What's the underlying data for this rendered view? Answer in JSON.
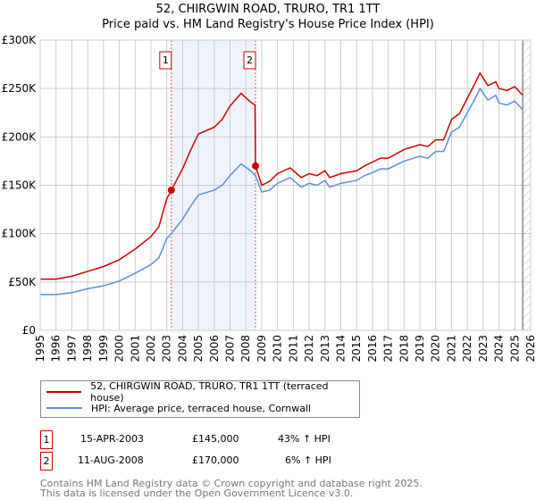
{
  "chart_data": {
    "type": "line",
    "title": "52, CHIRGWIN ROAD, TRURO, TR1 1TT",
    "subtitle": "Price paid vs. HM Land Registry's House Price Index (HPI)",
    "xlim": [
      1995,
      2026
    ],
    "ylim": [
      0,
      300000
    ],
    "y_ticks": [
      0,
      50000,
      100000,
      150000,
      200000,
      250000,
      300000
    ],
    "y_tick_labels": [
      "£0",
      "£50K",
      "£100K",
      "£150K",
      "£200K",
      "£250K",
      "£300K"
    ],
    "x_tick_labels": [
      "1995",
      "1996",
      "1997",
      "1998",
      "1999",
      "2000",
      "2001",
      "2002",
      "2003",
      "2004",
      "2005",
      "2006",
      "2007",
      "2008",
      "2009",
      "2010",
      "2011",
      "2012",
      "2013",
      "2014",
      "2015",
      "2016",
      "2017",
      "2018",
      "2019",
      "2020",
      "2021",
      "2022",
      "2023",
      "2024",
      "2025",
      "2026"
    ],
    "grid": true,
    "legend_position": "below",
    "shaded_region": [
      2003.29,
      2008.61
    ],
    "forecast_hatch_from": 2025.5,
    "colors": {
      "price": "#cc0000",
      "hpi": "#5b8fd4",
      "shade": "#eef3fd"
    },
    "series": [
      {
        "name": "52, CHIRGWIN ROAD, TRURO, TR1 1TT (terraced house)",
        "color": "#cc0000",
        "x": [
          1995,
          1996,
          1997,
          1998,
          1999,
          2000,
          2001,
          2002,
          2002.5,
          2003,
          2003.29,
          2004,
          2004.5,
          2005,
          2006,
          2006.5,
          2007,
          2007.7,
          2008.3,
          2008.58,
          2008.61,
          2009,
          2009.5,
          2010,
          2010.8,
          2011.5,
          2012,
          2012.5,
          2013,
          2013.3,
          2014,
          2015,
          2015.5,
          2016,
          2016.5,
          2017,
          2018,
          2019,
          2019.5,
          2020,
          2020.5,
          2021,
          2021.5,
          2022,
          2022.5,
          2022.8,
          2023.3,
          2023.8,
          2024,
          2024.5,
          2025,
          2025.5
        ],
        "y": [
          53000,
          53000,
          56000,
          61000,
          66000,
          73000,
          84000,
          97000,
          107000,
          136000,
          145000,
          167000,
          186000,
          203000,
          210000,
          218000,
          232000,
          245000,
          236000,
          233000,
          170000,
          150000,
          154000,
          162000,
          168000,
          158000,
          162000,
          160000,
          165000,
          158000,
          162000,
          165000,
          170000,
          174000,
          178000,
          178000,
          187000,
          192000,
          190000,
          197000,
          197000,
          218000,
          224000,
          240000,
          256000,
          266000,
          253000,
          257000,
          250000,
          248000,
          252000,
          243000
        ]
      },
      {
        "name": "HPI: Average price, terraced house, Cornwall",
        "color": "#5b8fd4",
        "x": [
          1995,
          1996,
          1997,
          1998,
          1999,
          2000,
          2001,
          2002,
          2002.5,
          2003,
          2003.29,
          2004,
          2004.5,
          2005,
          2006,
          2006.5,
          2007,
          2007.7,
          2008.3,
          2008.61,
          2009,
          2009.5,
          2010,
          2010.8,
          2011.5,
          2012,
          2012.5,
          2013,
          2013.3,
          2014,
          2015,
          2015.5,
          2016,
          2016.5,
          2017,
          2018,
          2019,
          2019.5,
          2020,
          2020.5,
          2021,
          2021.5,
          2022,
          2022.5,
          2022.8,
          2023.3,
          2023.8,
          2024,
          2024.5,
          2025,
          2025.5
        ],
        "y": [
          37000,
          37000,
          39000,
          43000,
          46000,
          51000,
          59000,
          68000,
          75000,
          95000,
          100000,
          115000,
          128000,
          140000,
          145000,
          150000,
          160000,
          172000,
          165000,
          160000,
          143000,
          145000,
          152000,
          158000,
          148000,
          152000,
          150000,
          155000,
          148000,
          152000,
          155000,
          160000,
          163000,
          167000,
          167000,
          175000,
          180000,
          178000,
          185000,
          185000,
          205000,
          210000,
          225000,
          240000,
          250000,
          238000,
          243000,
          235000,
          233000,
          237000,
          228000
        ]
      }
    ],
    "annotations": [
      {
        "label": "1",
        "x": 2003.29,
        "y": 145000
      },
      {
        "label": "2",
        "x": 2008.61,
        "y": 170000
      }
    ]
  },
  "legend": {
    "price_label": "52, CHIRGWIN ROAD, TRURO, TR1 1TT (terraced house)",
    "hpi_label": "HPI: Average price, terraced house, Cornwall"
  },
  "sales": [
    {
      "num": "1",
      "date": "15-APR-2003",
      "price": "£145,000",
      "hpi": "43% ↑ HPI"
    },
    {
      "num": "2",
      "date": "11-AUG-2008",
      "price": "£170,000",
      "hpi": "6% ↑ HPI"
    }
  ],
  "footer": {
    "line1": "Contains HM Land Registry data © Crown copyright and database right 2025.",
    "line2": "This data is licensed under the Open Government Licence v3.0."
  }
}
